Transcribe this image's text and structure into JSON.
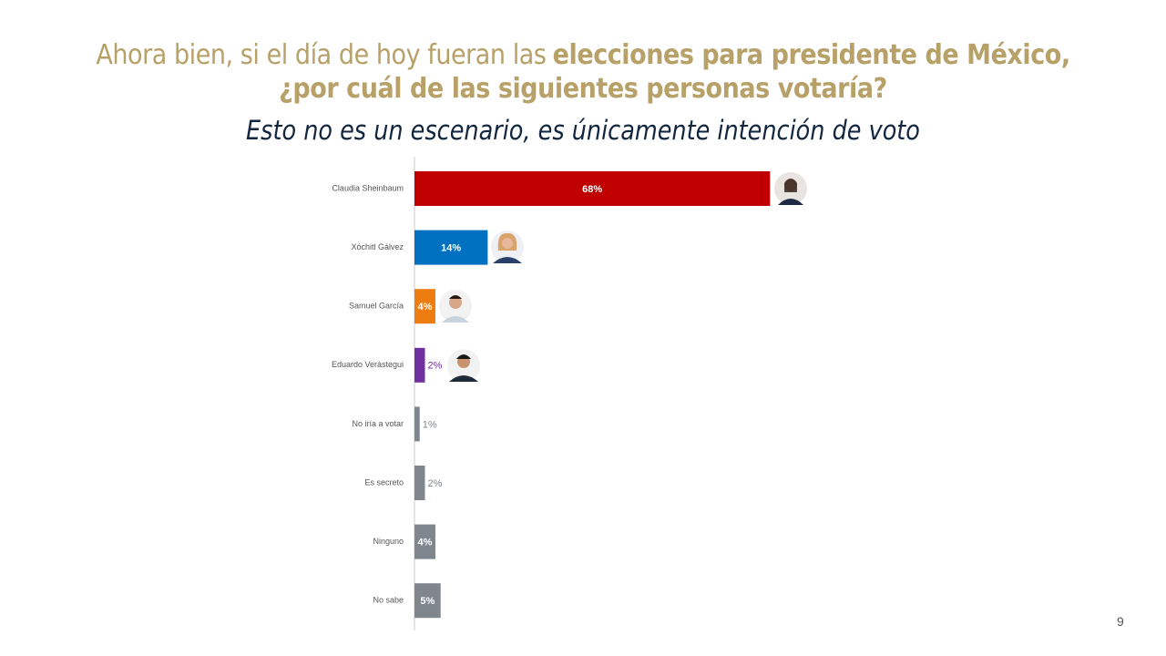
{
  "chart_data": {
    "type": "bar",
    "orientation": "horizontal",
    "title": {
      "regular": "Ahora bien, si el día de hoy fueran las",
      "emphasis": [
        "elecciones para presidente de México,",
        "¿por cuál de las siguientes personas votaría?"
      ]
    },
    "subtitle": "Esto no es un escenario, es únicamente intención de voto",
    "categories": [
      "Claudia Sheinbaum",
      "Xóchitl Gálvez",
      "Samuel García",
      "Eduardo Verástegui",
      "No iría a votar",
      "Es secreto",
      "Ninguno",
      "No sabe"
    ],
    "values": [
      68,
      14,
      4,
      2,
      1,
      2,
      4,
      5
    ],
    "value_labels": [
      "68%",
      "14%",
      "4%",
      "2%",
      "1%",
      "2%",
      "4%",
      "5%"
    ],
    "colors": [
      "#c00000",
      "#0070c0",
      "#ee7d11",
      "#7030a0",
      "#7f868e",
      "#7f868e",
      "#7f868e",
      "#7f868e"
    ],
    "page_number": "9"
  }
}
